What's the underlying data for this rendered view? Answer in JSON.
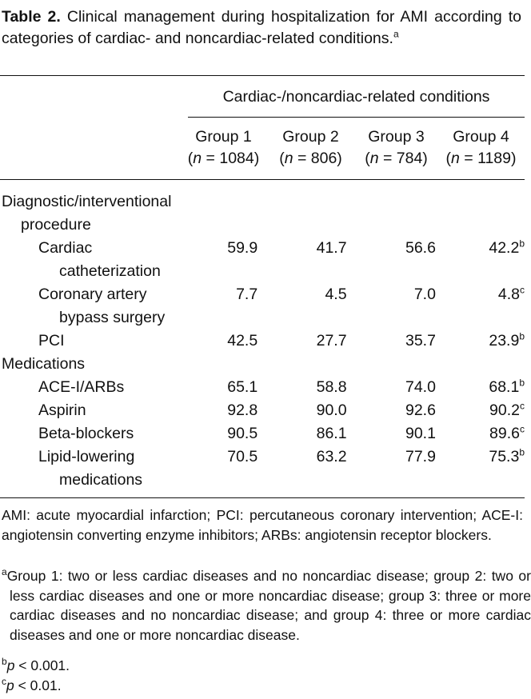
{
  "caption": {
    "label": "Table 2.",
    "text": " Clinical management during hospitalization for AMI according to categories of cardiac- and noncardiac-related conditions.",
    "sup": "a"
  },
  "header": {
    "span": "Cardiac-/noncardiac-related conditions",
    "groups": [
      {
        "name": "Group 1",
        "n_prefix": "(",
        "n_var": "n",
        "n_eq": " = 1084)"
      },
      {
        "name": "Group 2",
        "n_prefix": "(",
        "n_var": "n",
        "n_eq": " = 806)"
      },
      {
        "name": "Group 3",
        "n_prefix": "(",
        "n_var": "n",
        "n_eq": " = 784)"
      },
      {
        "name": "Group 4",
        "n_prefix": "(",
        "n_var": "n",
        "n_eq": " = 1189)"
      }
    ]
  },
  "sections": {
    "procedures": {
      "line1": "Diagnostic/interventional",
      "line2": "procedure"
    },
    "medications": "Medications"
  },
  "rows": {
    "cath": {
      "l1": "Cardiac",
      "l2": "catheterization",
      "v": [
        "59.9",
        "41.7",
        "56.6",
        "42.2"
      ],
      "sup": "b"
    },
    "cabg": {
      "l1": "Coronary artery",
      "l2": "bypass surgery",
      "v": [
        "7.7",
        "4.5",
        "7.0",
        "4.8"
      ],
      "sup": "c"
    },
    "pci": {
      "l1": "PCI",
      "v": [
        "42.5",
        "27.7",
        "35.7",
        "23.9"
      ],
      "sup": "b"
    },
    "ace": {
      "l1": "ACE-I/ARBs",
      "v": [
        "65.1",
        "58.8",
        "74.0",
        "68.1"
      ],
      "sup": "b"
    },
    "aspirin": {
      "l1": "Aspirin",
      "v": [
        "92.8",
        "90.0",
        "92.6",
        "90.2"
      ],
      "sup": "c"
    },
    "beta": {
      "l1": "Beta-blockers",
      "v": [
        "90.5",
        "86.1",
        "90.1",
        "89.6"
      ],
      "sup": "c"
    },
    "lipid": {
      "l1": "Lipid-lowering",
      "l2": "medications",
      "v": [
        "70.5",
        "63.2",
        "77.9",
        "75.3"
      ],
      "sup": "b"
    }
  },
  "footnotes": {
    "abbrev": "AMI: acute myocardial infarction; PCI: percutaneous coronary intervention; ACE-I: angiotensin converting enzyme inhibitors; ARBs: angiotensin receptor blockers.",
    "a": {
      "sup": "a",
      "text": "Group 1: two or less cardiac diseases and no noncardiac disease; group 2: two or less cardiac diseases and one or more noncardiac disease; group 3: three or more cardiac diseases and no noncardiac disease; and group 4: three or more cardiac diseases and one or more noncardiac disease."
    },
    "b": {
      "sup": "b",
      "var": "p",
      "text": " < 0.001."
    },
    "c": {
      "sup": "c",
      "var": "p",
      "text": " < 0.01."
    }
  }
}
